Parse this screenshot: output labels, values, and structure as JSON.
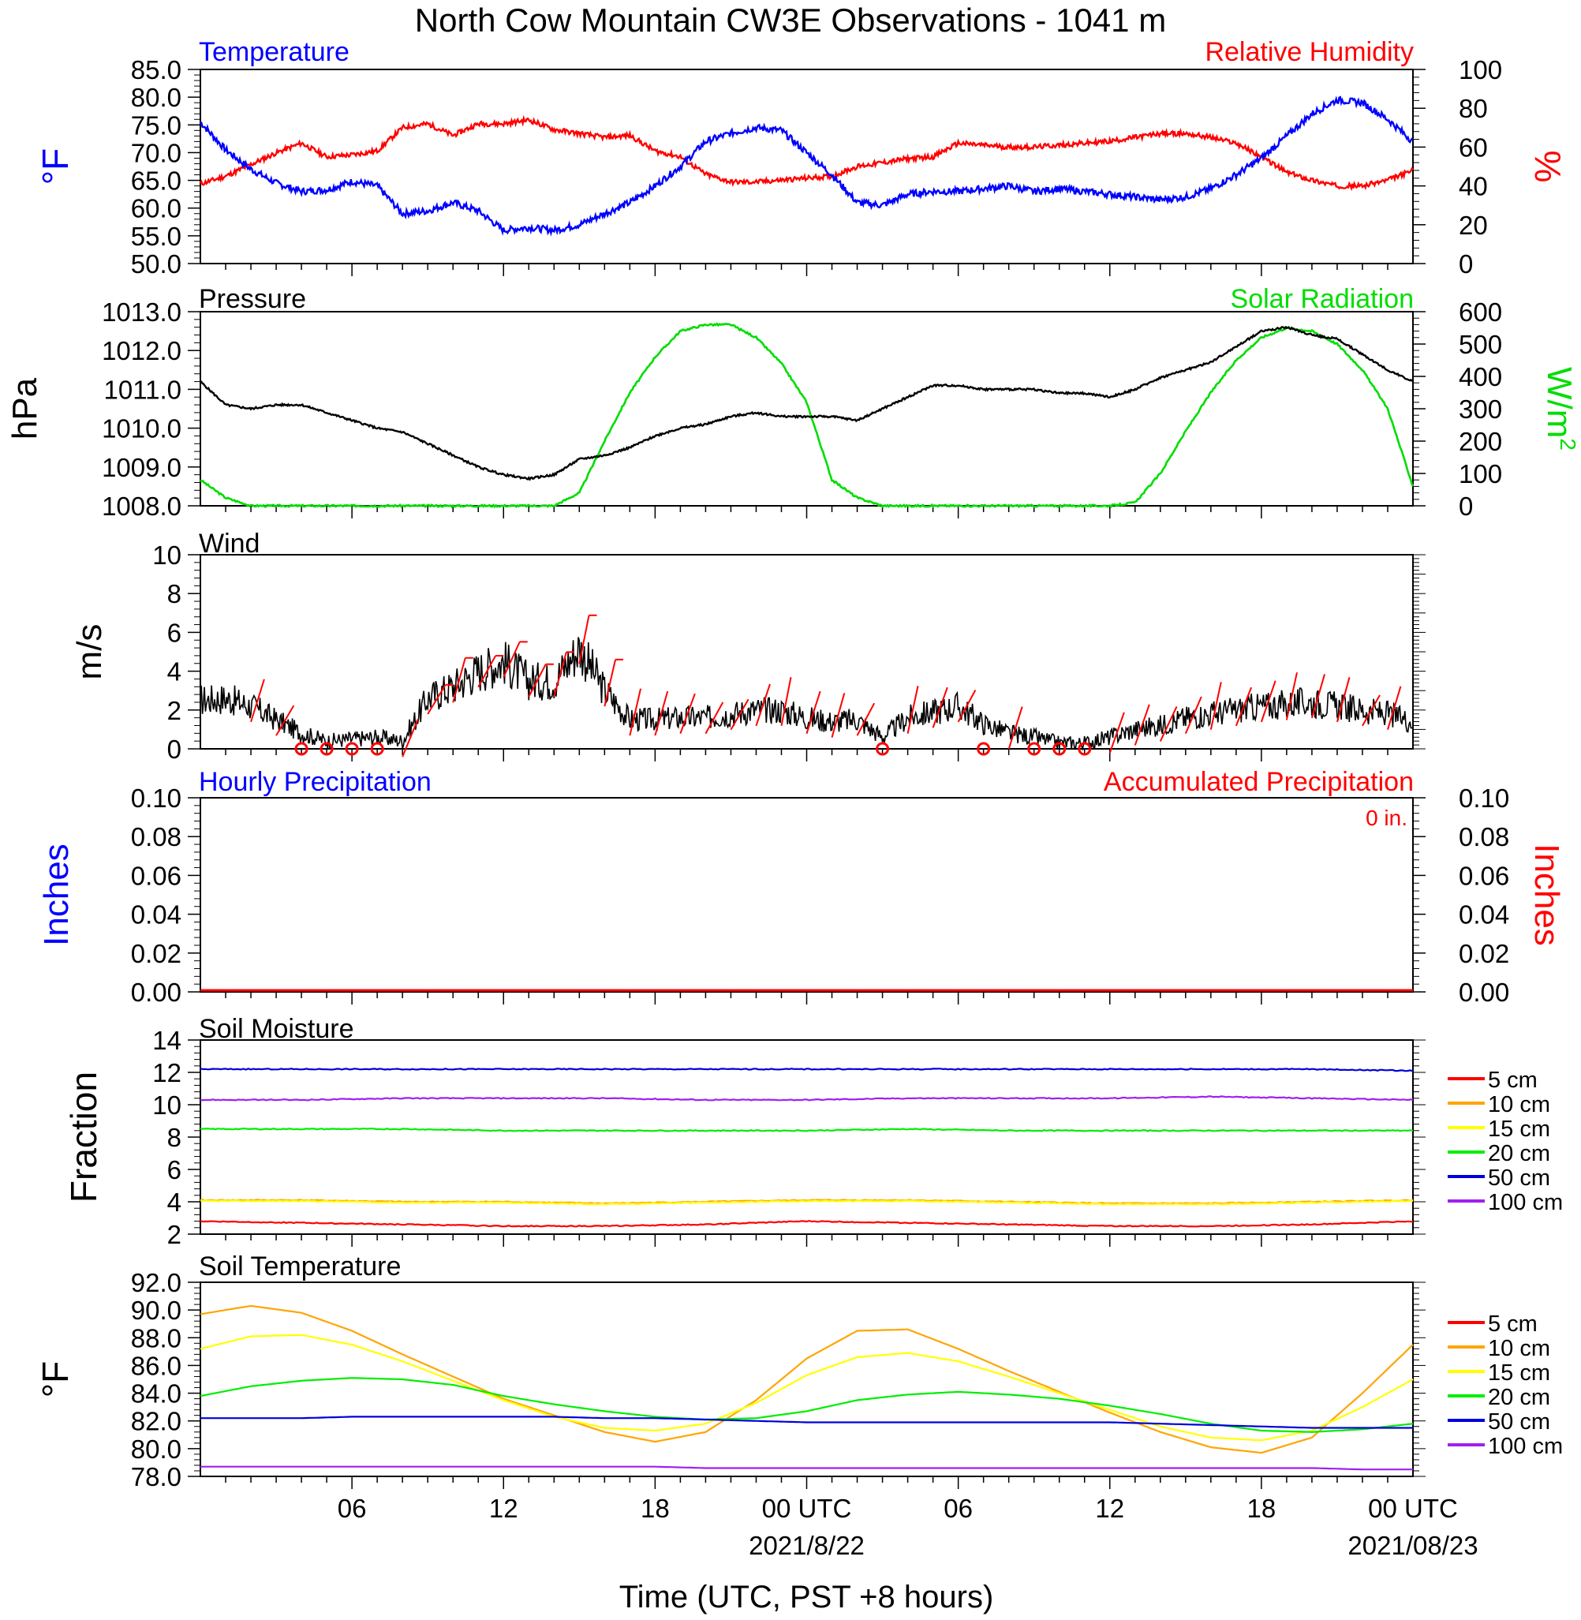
{
  "title": "North Cow Mountain CW3E Observations - 1041 m",
  "x_axis": {
    "label": "Time (UTC, PST +8 hours)",
    "range_hours": [
      0,
      48
    ],
    "major_ticks": [
      {
        "hour": 6,
        "label": "06",
        "sublabel": ""
      },
      {
        "hour": 12,
        "label": "12",
        "sublabel": ""
      },
      {
        "hour": 18,
        "label": "18",
        "sublabel": ""
      },
      {
        "hour": 24,
        "label": "00 UTC",
        "sublabel": "2021/8/22"
      },
      {
        "hour": 30,
        "label": "06",
        "sublabel": ""
      },
      {
        "hour": 36,
        "label": "12",
        "sublabel": ""
      },
      {
        "hour": 42,
        "label": "18",
        "sublabel": ""
      },
      {
        "hour": 48,
        "label": "00 UTC",
        "sublabel": "2021/08/23"
      }
    ]
  },
  "panels": {
    "temp_rh": {
      "left_label": "Temperature",
      "right_label": "Relative Humidity",
      "left_unit": "°F",
      "right_unit": "%",
      "left_ticks": [
        "85.0",
        "80.0",
        "75.0",
        "70.0",
        "65.0",
        "60.0",
        "55.0",
        "50.0"
      ],
      "right_ticks": [
        "100",
        "80",
        "60",
        "40",
        "20",
        "0"
      ],
      "left_color": "#0000ff",
      "right_color": "#ff0000"
    },
    "pressure_solar": {
      "left_label": "Pressure",
      "right_label": "Solar Radiation",
      "left_unit": "hPa",
      "right_unit": "W/m",
      "right_unit_sup": "2",
      "left_ticks": [
        "1013.0",
        "1012.0",
        "1011.0",
        "1010.0",
        "1009.0",
        "1008.0"
      ],
      "right_ticks": [
        "600",
        "500",
        "400",
        "300",
        "200",
        "100",
        "0"
      ],
      "left_color": "#000000",
      "right_color": "#00dd00"
    },
    "wind": {
      "label": "Wind",
      "unit": "m/s",
      "ticks": [
        "10",
        "8",
        "6",
        "4",
        "2",
        "0"
      ],
      "color": "#000000",
      "barb_color": "#ff0000"
    },
    "precip": {
      "left_label": "Hourly Precipitation",
      "right_label": "Accumulated Precipitation",
      "accum_text": "0 in.",
      "left_unit": "Inches",
      "right_unit": "Inches",
      "left_ticks": [
        "0.10",
        "0.08",
        "0.06",
        "0.04",
        "0.02",
        "0.00"
      ],
      "right_ticks": [
        "0.10",
        "0.08",
        "0.06",
        "0.04",
        "0.02",
        "0.00"
      ],
      "left_color": "#0000ff",
      "right_color": "#ff0000"
    },
    "soil_moisture": {
      "label": "Soil Moisture",
      "unit": "Fraction",
      "ticks": [
        "14",
        "12",
        "10",
        "8",
        "6",
        "4",
        "2"
      ]
    },
    "soil_temperature": {
      "label": "Soil Temperature",
      "unit": "°F",
      "ticks": [
        "92.0",
        "90.0",
        "88.0",
        "86.0",
        "84.0",
        "82.0",
        "80.0",
        "78.0"
      ]
    }
  },
  "legend": [
    {
      "label": "5 cm",
      "color": "#ff0000"
    },
    {
      "label": "10 cm",
      "color": "#ffa500"
    },
    {
      "label": "15 cm",
      "color": "#ffff00"
    },
    {
      "label": "20 cm",
      "color": "#00ee00"
    },
    {
      "label": "50 cm",
      "color": "#0000dd"
    },
    {
      "label": "100 cm",
      "color": "#a020f0"
    }
  ],
  "chart_data": [
    {
      "type": "line",
      "title": "Temperature",
      "ylabel": "°F",
      "xlim": [
        0,
        48
      ],
      "ylim": [
        50,
        85
      ],
      "y2lim": [
        0,
        100
      ],
      "y2label": "%",
      "x": [
        0,
        1,
        2,
        3,
        4,
        5,
        6,
        7,
        8,
        9,
        10,
        11,
        12,
        13,
        14,
        15,
        16,
        17,
        18,
        19,
        20,
        21,
        22,
        23,
        24,
        25,
        26,
        27,
        28,
        29,
        30,
        31,
        32,
        33,
        34,
        35,
        36,
        37,
        38,
        39,
        40,
        41,
        42,
        43,
        44,
        45,
        46,
        47,
        48
      ],
      "series": [
        {
          "name": "Temperature",
          "color": "#0000ff",
          "axis": "left",
          "values": [
            75.5,
            70.5,
            67.0,
            64.5,
            63.0,
            63.3,
            64.8,
            64.0,
            59.0,
            59.5,
            61.0,
            59.5,
            56.0,
            56.5,
            56.0,
            57.0,
            59.0,
            61.0,
            64.0,
            67.5,
            72.0,
            73.5,
            74.5,
            74.0,
            70.0,
            66.0,
            61.0,
            60.5,
            62.5,
            63.0,
            63.0,
            63.5,
            64.0,
            63.0,
            63.5,
            63.0,
            62.5,
            62.0,
            61.5,
            62.0,
            63.5,
            66.0,
            69.0,
            73.0,
            77.0,
            79.5,
            79.0,
            76.0,
            72.0
          ]
        },
        {
          "name": "Relative Humidity",
          "color": "#ff0000",
          "axis": "right",
          "values": [
            41,
            45,
            51,
            57,
            62,
            55,
            56,
            58,
            70,
            72,
            66,
            72,
            72,
            74,
            69,
            67,
            65,
            66,
            58,
            55,
            46,
            42,
            42,
            43,
            44,
            45,
            50,
            52,
            54,
            55,
            62,
            61,
            60,
            60,
            61,
            62,
            63,
            65,
            67,
            67,
            65,
            62,
            55,
            47,
            43,
            40,
            40,
            43,
            48
          ]
        }
      ]
    },
    {
      "type": "line",
      "title": "Pressure",
      "ylabel": "hPa",
      "xlim": [
        0,
        48
      ],
      "ylim": [
        1008,
        1013
      ],
      "y2lim": [
        0,
        600
      ],
      "y2label": "W/m2",
      "x": [
        0,
        1,
        2,
        3,
        4,
        5,
        6,
        7,
        8,
        9,
        10,
        11,
        12,
        13,
        14,
        15,
        16,
        17,
        18,
        19,
        20,
        21,
        22,
        23,
        24,
        25,
        26,
        27,
        28,
        29,
        30,
        31,
        32,
        33,
        34,
        35,
        36,
        37,
        38,
        39,
        40,
        41,
        42,
        43,
        44,
        45,
        46,
        47,
        48
      ],
      "series": [
        {
          "name": "Pressure",
          "color": "#000000",
          "axis": "left",
          "values": [
            1011.2,
            1010.6,
            1010.5,
            1010.6,
            1010.6,
            1010.4,
            1010.2,
            1010.0,
            1009.9,
            1009.6,
            1009.3,
            1009.0,
            1008.8,
            1008.7,
            1008.8,
            1009.2,
            1009.3,
            1009.5,
            1009.8,
            1010.0,
            1010.1,
            1010.3,
            1010.4,
            1010.3,
            1010.3,
            1010.3,
            1010.2,
            1010.5,
            1010.8,
            1011.1,
            1011.1,
            1011.0,
            1011.0,
            1011.0,
            1010.9,
            1010.9,
            1010.8,
            1011.0,
            1011.3,
            1011.5,
            1011.7,
            1012.1,
            1012.5,
            1012.6,
            1012.4,
            1012.3,
            1011.9,
            1011.5,
            1011.2
          ]
        },
        {
          "name": "Solar Radiation",
          "color": "#00dd00",
          "axis": "right",
          "values": [
            80,
            25,
            0,
            0,
            0,
            0,
            0,
            0,
            0,
            0,
            0,
            0,
            0,
            0,
            0,
            40,
            200,
            350,
            460,
            540,
            560,
            560,
            520,
            440,
            320,
            80,
            25,
            0,
            0,
            0,
            0,
            0,
            0,
            0,
            0,
            0,
            0,
            10,
            100,
            230,
            350,
            450,
            520,
            550,
            540,
            500,
            420,
            300,
            60
          ]
        }
      ]
    },
    {
      "type": "line",
      "title": "Wind",
      "ylabel": "m/s",
      "xlim": [
        0,
        48
      ],
      "ylim": [
        0,
        10
      ],
      "x": [
        0,
        1,
        2,
        3,
        4,
        5,
        6,
        7,
        8,
        9,
        10,
        11,
        12,
        13,
        14,
        15,
        16,
        17,
        18,
        19,
        20,
        21,
        22,
        23,
        24,
        25,
        26,
        27,
        28,
        29,
        30,
        31,
        32,
        33,
        34,
        35,
        36,
        37,
        38,
        39,
        40,
        41,
        42,
        43,
        44,
        45,
        46,
        47,
        48
      ],
      "series": [
        {
          "name": "Wind speed",
          "color": "#000000",
          "values": [
            2.5,
            2.6,
            2.2,
            1.5,
            0.8,
            0.4,
            0.5,
            0.6,
            0.4,
            2.6,
            3.2,
            4.0,
            4.5,
            3.5,
            3.5,
            5.2,
            3.0,
            1.5,
            1.5,
            1.6,
            1.6,
            1.8,
            2.0,
            2.0,
            1.6,
            1.4,
            1.5,
            0.6,
            1.6,
            1.9,
            2.2,
            1.3,
            0.8,
            0.6,
            0.3,
            0.3,
            0.6,
            1.0,
            1.2,
            1.6,
            1.8,
            2.0,
            2.2,
            2.3,
            2.4,
            2.2,
            2.0,
            1.8,
            1.4
          ]
        },
        {
          "name": "Calm",
          "color": "#ff0000",
          "x": [
            4,
            5,
            6,
            7,
            27,
            31,
            33,
            34,
            35
          ],
          "values": [
            0,
            0,
            0,
            0,
            0,
            0,
            0,
            0,
            0
          ]
        }
      ]
    },
    {
      "type": "line",
      "title": "Hourly Precipitation",
      "ylabel": "Inches",
      "xlim": [
        0,
        48
      ],
      "ylim": [
        0,
        0.1
      ],
      "y2lim": [
        0,
        0.1
      ],
      "y2label": "Inches",
      "x": [
        0,
        48
      ],
      "series": [
        {
          "name": "Hourly Precipitation",
          "color": "#0000ff",
          "values": [
            0,
            0
          ]
        },
        {
          "name": "Accumulated Precipitation",
          "color": "#ff0000",
          "values": [
            0,
            0
          ]
        }
      ]
    },
    {
      "type": "line",
      "title": "Soil Moisture",
      "ylabel": "Fraction",
      "xlim": [
        0,
        48
      ],
      "ylim": [
        2,
        14
      ],
      "x": [
        0,
        4,
        8,
        12,
        16,
        20,
        24,
        28,
        32,
        36,
        40,
        44,
        48
      ],
      "series": [
        {
          "name": "5 cm",
          "color": "#ff0000",
          "values": [
            2.8,
            2.7,
            2.6,
            2.5,
            2.5,
            2.6,
            2.8,
            2.7,
            2.6,
            2.5,
            2.5,
            2.6,
            2.8
          ]
        },
        {
          "name": "10 cm",
          "color": "#ffa500",
          "values": [
            4.1,
            4.1,
            4.0,
            4.0,
            3.9,
            4.0,
            4.1,
            4.1,
            4.0,
            3.9,
            3.9,
            4.0,
            4.1
          ]
        },
        {
          "name": "15 cm",
          "color": "#ffff00",
          "values": [
            4.05,
            4.05,
            3.95,
            3.95,
            3.85,
            3.95,
            4.05,
            4.05,
            3.95,
            3.85,
            3.85,
            3.95,
            4.05
          ]
        },
        {
          "name": "20 cm",
          "color": "#00ee00",
          "values": [
            8.5,
            8.5,
            8.5,
            8.4,
            8.4,
            8.4,
            8.4,
            8.5,
            8.4,
            8.4,
            8.4,
            8.4,
            8.4
          ]
        },
        {
          "name": "50 cm",
          "color": "#0000dd",
          "values": [
            12.2,
            12.2,
            12.2,
            12.2,
            12.2,
            12.2,
            12.2,
            12.2,
            12.2,
            12.2,
            12.2,
            12.2,
            12.1
          ]
        },
        {
          "name": "100 cm",
          "color": "#a020f0",
          "values": [
            10.3,
            10.3,
            10.4,
            10.4,
            10.4,
            10.3,
            10.3,
            10.4,
            10.4,
            10.4,
            10.5,
            10.4,
            10.3
          ]
        }
      ]
    },
    {
      "type": "line",
      "title": "Soil Temperature",
      "ylabel": "°F",
      "xlim": [
        0,
        48
      ],
      "ylim": [
        78,
        92
      ],
      "x": [
        0,
        2,
        4,
        6,
        8,
        10,
        12,
        14,
        16,
        18,
        20,
        22,
        24,
        26,
        28,
        30,
        32,
        34,
        36,
        38,
        40,
        42,
        44,
        46,
        48
      ],
      "series": [
        {
          "name": "10 cm",
          "color": "#ffa500",
          "values": [
            89.7,
            90.3,
            89.8,
            88.5,
            86.8,
            85.2,
            83.6,
            82.4,
            81.2,
            80.5,
            81.2,
            83.5,
            86.5,
            88.5,
            88.6,
            87.2,
            85.6,
            84.1,
            82.6,
            81.2,
            80.1,
            79.7,
            80.8,
            84.0,
            87.5
          ]
        },
        {
          "name": "15 cm",
          "color": "#ffff00",
          "values": [
            87.2,
            88.1,
            88.2,
            87.5,
            86.3,
            84.9,
            83.5,
            82.3,
            81.5,
            81.3,
            81.8,
            83.3,
            85.3,
            86.6,
            86.9,
            86.3,
            85.2,
            84.0,
            82.8,
            81.6,
            80.8,
            80.6,
            81.3,
            83.0,
            85.0
          ]
        },
        {
          "name": "20 cm",
          "color": "#00ee00",
          "values": [
            83.8,
            84.5,
            84.9,
            85.1,
            85.0,
            84.6,
            83.8,
            83.2,
            82.7,
            82.3,
            82.1,
            82.2,
            82.7,
            83.5,
            83.9,
            84.1,
            83.9,
            83.6,
            83.1,
            82.5,
            81.8,
            81.3,
            81.2,
            81.4,
            81.8
          ]
        },
        {
          "name": "50 cm",
          "color": "#0000dd",
          "values": [
            82.2,
            82.2,
            82.2,
            82.3,
            82.3,
            82.3,
            82.3,
            82.3,
            82.2,
            82.2,
            82.1,
            82.0,
            81.9,
            81.9,
            81.9,
            81.9,
            81.9,
            81.9,
            81.9,
            81.8,
            81.7,
            81.6,
            81.5,
            81.5,
            81.5
          ]
        },
        {
          "name": "100 cm",
          "color": "#a020f0",
          "values": [
            78.7,
            78.7,
            78.7,
            78.7,
            78.7,
            78.7,
            78.7,
            78.7,
            78.7,
            78.7,
            78.6,
            78.6,
            78.6,
            78.6,
            78.6,
            78.6,
            78.6,
            78.6,
            78.6,
            78.6,
            78.6,
            78.6,
            78.6,
            78.5,
            78.5
          ]
        }
      ]
    }
  ]
}
